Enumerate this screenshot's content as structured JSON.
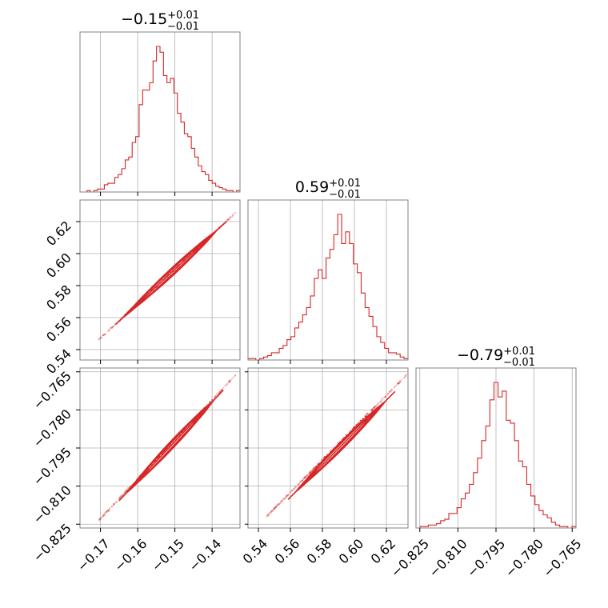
{
  "chart_data": {
    "type": "corner",
    "color": "#d62728",
    "grid": true,
    "parameters": [
      {
        "range": [
          -0.1755,
          -0.1325
        ],
        "ticks": [
          -0.17,
          -0.16,
          -0.15,
          -0.14
        ],
        "tick_labels": [
          "−0.17",
          "−0.16",
          "−0.15",
          "−0.14"
        ],
        "title": {
          "value": "−0.15",
          "upper": "+0.01",
          "lower": "−0.01"
        },
        "histogram": [
          0,
          0,
          1,
          0,
          1,
          2,
          2,
          5,
          6,
          6,
          10,
          12,
          16,
          22,
          24,
          34,
          38,
          60,
          70,
          70,
          75,
          90,
          100,
          96,
          80,
          75,
          78,
          68,
          54,
          48,
          40,
          38,
          30,
          24,
          18,
          14,
          12,
          8,
          6,
          4,
          3,
          2,
          1,
          1,
          0,
          1
        ]
      },
      {
        "range": [
          0.5335,
          0.6335
        ],
        "ticks": [
          0.54,
          0.56,
          0.58,
          0.6,
          0.62
        ],
        "tick_labels": [
          "0.54",
          "0.56",
          "0.58",
          "0.60",
          "0.62"
        ],
        "title": {
          "value": "0.59",
          "upper": "+0.01",
          "lower": "−0.01"
        },
        "histogram": [
          1,
          1,
          0,
          1,
          2,
          3,
          5,
          5,
          8,
          10,
          14,
          16,
          22,
          26,
          31,
          36,
          44,
          56,
          62,
          56,
          70,
          76,
          86,
          100,
          80,
          88,
          80,
          66,
          60,
          46,
          36,
          30,
          23,
          16,
          12,
          8,
          5,
          5,
          4,
          2,
          1
        ]
      },
      {
        "range": [
          -0.8265,
          -0.7635
        ],
        "ticks": [
          -0.825,
          -0.81,
          -0.795,
          -0.78,
          -0.765
        ],
        "tick_labels": [
          "−0.825",
          "−0.810",
          "−0.795",
          "−0.780",
          "−0.765"
        ],
        "title": {
          "value": "−0.79",
          "upper": "+0.01",
          "lower": "−0.01"
        },
        "histogram": [
          0,
          1,
          1,
          2,
          2,
          3,
          5,
          6,
          10,
          10,
          14,
          20,
          24,
          30,
          38,
          48,
          60,
          70,
          88,
          100,
          90,
          94,
          74,
          72,
          60,
          46,
          42,
          30,
          22,
          16,
          12,
          9,
          7,
          4,
          2,
          1,
          1,
          0,
          1
        ]
      }
    ],
    "pairs": [
      {
        "x": 0,
        "y": 1
      },
      {
        "x": 0,
        "y": 2
      },
      {
        "x": 1,
        "y": 2
      }
    ]
  }
}
